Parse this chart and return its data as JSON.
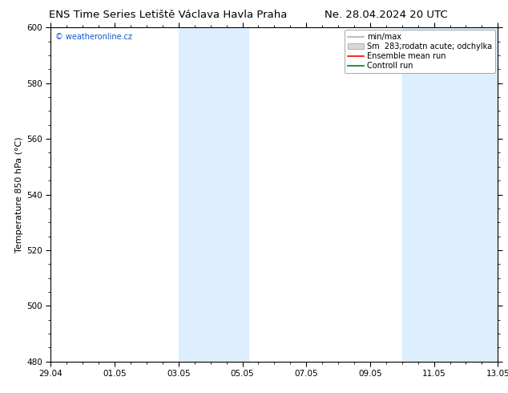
{
  "title_left": "ENS Time Series Letiště Václava Havla Praha",
  "title_right": "Ne. 28.04.2024 20 UTC",
  "ylabel": "Temperature 850 hPa (°C)",
  "xlim_start": 0,
  "xlim_end": 14,
  "ylim": [
    480,
    600
  ],
  "yticks": [
    480,
    500,
    520,
    540,
    560,
    580,
    600
  ],
  "xtick_labels": [
    "29.04",
    "01.05",
    "03.05",
    "05.05",
    "07.05",
    "09.05",
    "11.05",
    "13.05"
  ],
  "xtick_positions": [
    0,
    2,
    4,
    6,
    8,
    10,
    12,
    14
  ],
  "shaded_regions": [
    {
      "xstart": 4.0,
      "xend": 6.2,
      "color": "#ddeeff"
    },
    {
      "xstart": 11.0,
      "xend": 14.0,
      "color": "#ddeeff"
    }
  ],
  "watermark": "© weatheronline.cz",
  "legend_entries": [
    {
      "label": "min/max",
      "color": "#b0b0b0",
      "lw": 1.2,
      "style": "solid",
      "type": "line"
    },
    {
      "label": "Sm  283;rodatn acute; odchylka",
      "color": "#d8d8d8",
      "lw": 6,
      "style": "solid",
      "type": "bar"
    },
    {
      "label": "Ensemble mean run",
      "color": "red",
      "lw": 1.2,
      "style": "solid",
      "type": "line"
    },
    {
      "label": "Controll run",
      "color": "green",
      "lw": 1.2,
      "style": "solid",
      "type": "line"
    }
  ],
  "background_color": "#ffffff",
  "plot_bg_color": "#ffffff",
  "title_fontsize": 9.5,
  "axis_fontsize": 8,
  "tick_fontsize": 7.5,
  "legend_fontsize": 7,
  "watermark_fontsize": 7
}
